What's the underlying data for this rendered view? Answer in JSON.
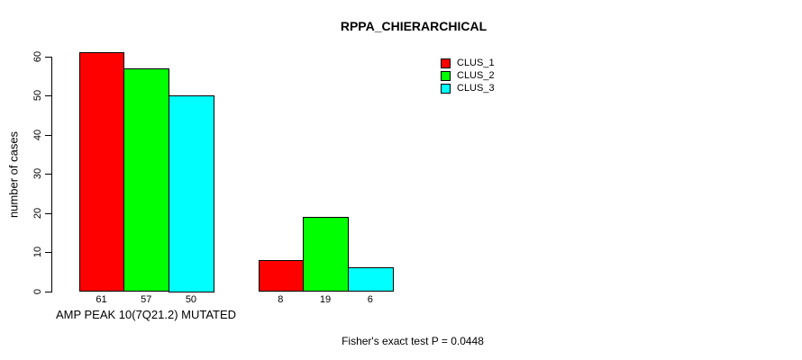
{
  "chart_data": {
    "type": "bar",
    "title": "RPPA_CHIERARCHICAL",
    "ylabel": "number of cases",
    "xlabel": "AMP PEAK 10(7Q21.2) MUTATED",
    "footnote": "Fisher's exact test P = 0.0448",
    "ylim": [
      0,
      60
    ],
    "yticks": [
      0,
      10,
      20,
      30,
      40,
      50,
      60
    ],
    "grid": false,
    "legend_position": "top-right-inside",
    "num_groups": 2,
    "series": [
      {
        "name": "CLUS_1",
        "color": "#FF0000",
        "values": [
          61,
          8
        ]
      },
      {
        "name": "CLUS_2",
        "color": "#00FF00",
        "values": [
          57,
          19
        ]
      },
      {
        "name": "CLUS_3",
        "color": "#00FFFF",
        "values": [
          50,
          6
        ]
      }
    ],
    "bar_value_labels": [
      [
        61,
        57,
        50
      ],
      [
        8,
        19,
        6
      ]
    ],
    "colors": {
      "background": "#FFFFFF",
      "axis": "#000000",
      "text": "#000000",
      "bar_border": "#000000"
    }
  }
}
